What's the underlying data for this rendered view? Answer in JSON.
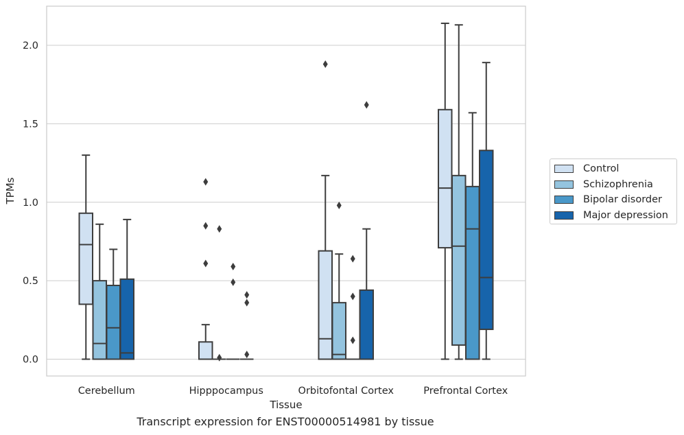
{
  "chart_data": {
    "type": "box",
    "title": "",
    "xlabel": "Tissue",
    "ylabel": "TPMs",
    "caption": "Transcript expression for ENST00000514981 by tissue",
    "ylim": [
      -0.1,
      2.26
    ],
    "yticks": [
      "0.0",
      "0.5",
      "1.0",
      "1.5",
      "2.0"
    ],
    "ytick_values": [
      0.0,
      0.5,
      1.0,
      1.5,
      2.0
    ],
    "grid": "horizontal",
    "legend_position": "right",
    "categories": [
      "Cerebellum",
      "Hipppocampus",
      "Orbitofontal Cortex",
      "Prefrontal Cortex"
    ],
    "series": [
      {
        "name": "Control",
        "color": "#d0e1f2",
        "boxes": [
          {
            "whisker_low": 0.0,
            "q1": 0.35,
            "median": 0.73,
            "q3": 0.93,
            "whisker_high": 1.3,
            "outliers": []
          },
          {
            "whisker_low": 0.0,
            "q1": 0.0,
            "median": 0.0,
            "q3": 0.11,
            "whisker_high": 0.22,
            "outliers": [
              0.61,
              0.85,
              1.13
            ]
          },
          {
            "whisker_low": 0.0,
            "q1": 0.0,
            "median": 0.13,
            "q3": 0.69,
            "whisker_high": 1.17,
            "outliers": [
              1.88
            ]
          },
          {
            "whisker_low": 0.0,
            "q1": 0.71,
            "median": 1.09,
            "q3": 1.59,
            "whisker_high": 2.14,
            "outliers": []
          }
        ]
      },
      {
        "name": "Schizophrenia",
        "color": "#94c4df",
        "boxes": [
          {
            "whisker_low": 0.0,
            "q1": 0.0,
            "median": 0.1,
            "q3": 0.5,
            "whisker_high": 0.86,
            "outliers": []
          },
          {
            "whisker_low": 0.0,
            "q1": 0.0,
            "median": 0.0,
            "q3": 0.0,
            "whisker_high": 0.0,
            "outliers": [
              0.01,
              0.83
            ]
          },
          {
            "whisker_low": 0.0,
            "q1": 0.0,
            "median": 0.03,
            "q3": 0.36,
            "whisker_high": 0.67,
            "outliers": [
              0.98
            ]
          },
          {
            "whisker_low": 0.0,
            "q1": 0.09,
            "median": 0.72,
            "q3": 1.17,
            "whisker_high": 2.13,
            "outliers": []
          }
        ]
      },
      {
        "name": "Bipolar disorder",
        "color": "#4a98c9",
        "boxes": [
          {
            "whisker_low": 0.0,
            "q1": 0.0,
            "median": 0.2,
            "q3": 0.47,
            "whisker_high": 0.7,
            "outliers": []
          },
          {
            "whisker_low": 0.0,
            "q1": 0.0,
            "median": 0.0,
            "q3": 0.0,
            "whisker_high": 0.0,
            "outliers": [
              0.49,
              0.59
            ]
          },
          {
            "whisker_low": 0.0,
            "q1": 0.0,
            "median": 0.0,
            "q3": 0.0,
            "whisker_high": 0.0,
            "outliers": [
              0.12,
              0.4,
              0.64
            ]
          },
          {
            "whisker_low": 0.0,
            "q1": 0.0,
            "median": 0.83,
            "q3": 1.1,
            "whisker_high": 1.57,
            "outliers": []
          }
        ]
      },
      {
        "name": "Major depression",
        "color": "#1764ab",
        "boxes": [
          {
            "whisker_low": 0.0,
            "q1": 0.0,
            "median": 0.04,
            "q3": 0.51,
            "whisker_high": 0.89,
            "outliers": []
          },
          {
            "whisker_low": 0.0,
            "q1": 0.0,
            "median": 0.0,
            "q3": 0.0,
            "whisker_high": 0.0,
            "outliers": [
              0.03,
              0.36,
              0.41
            ]
          },
          {
            "whisker_low": 0.0,
            "q1": 0.0,
            "median": 0.0,
            "q3": 0.44,
            "whisker_high": 0.83,
            "outliers": [
              1.62
            ]
          },
          {
            "whisker_low": 0.0,
            "q1": 0.19,
            "median": 0.52,
            "q3": 1.33,
            "whisker_high": 1.89,
            "outliers": []
          }
        ]
      }
    ]
  }
}
